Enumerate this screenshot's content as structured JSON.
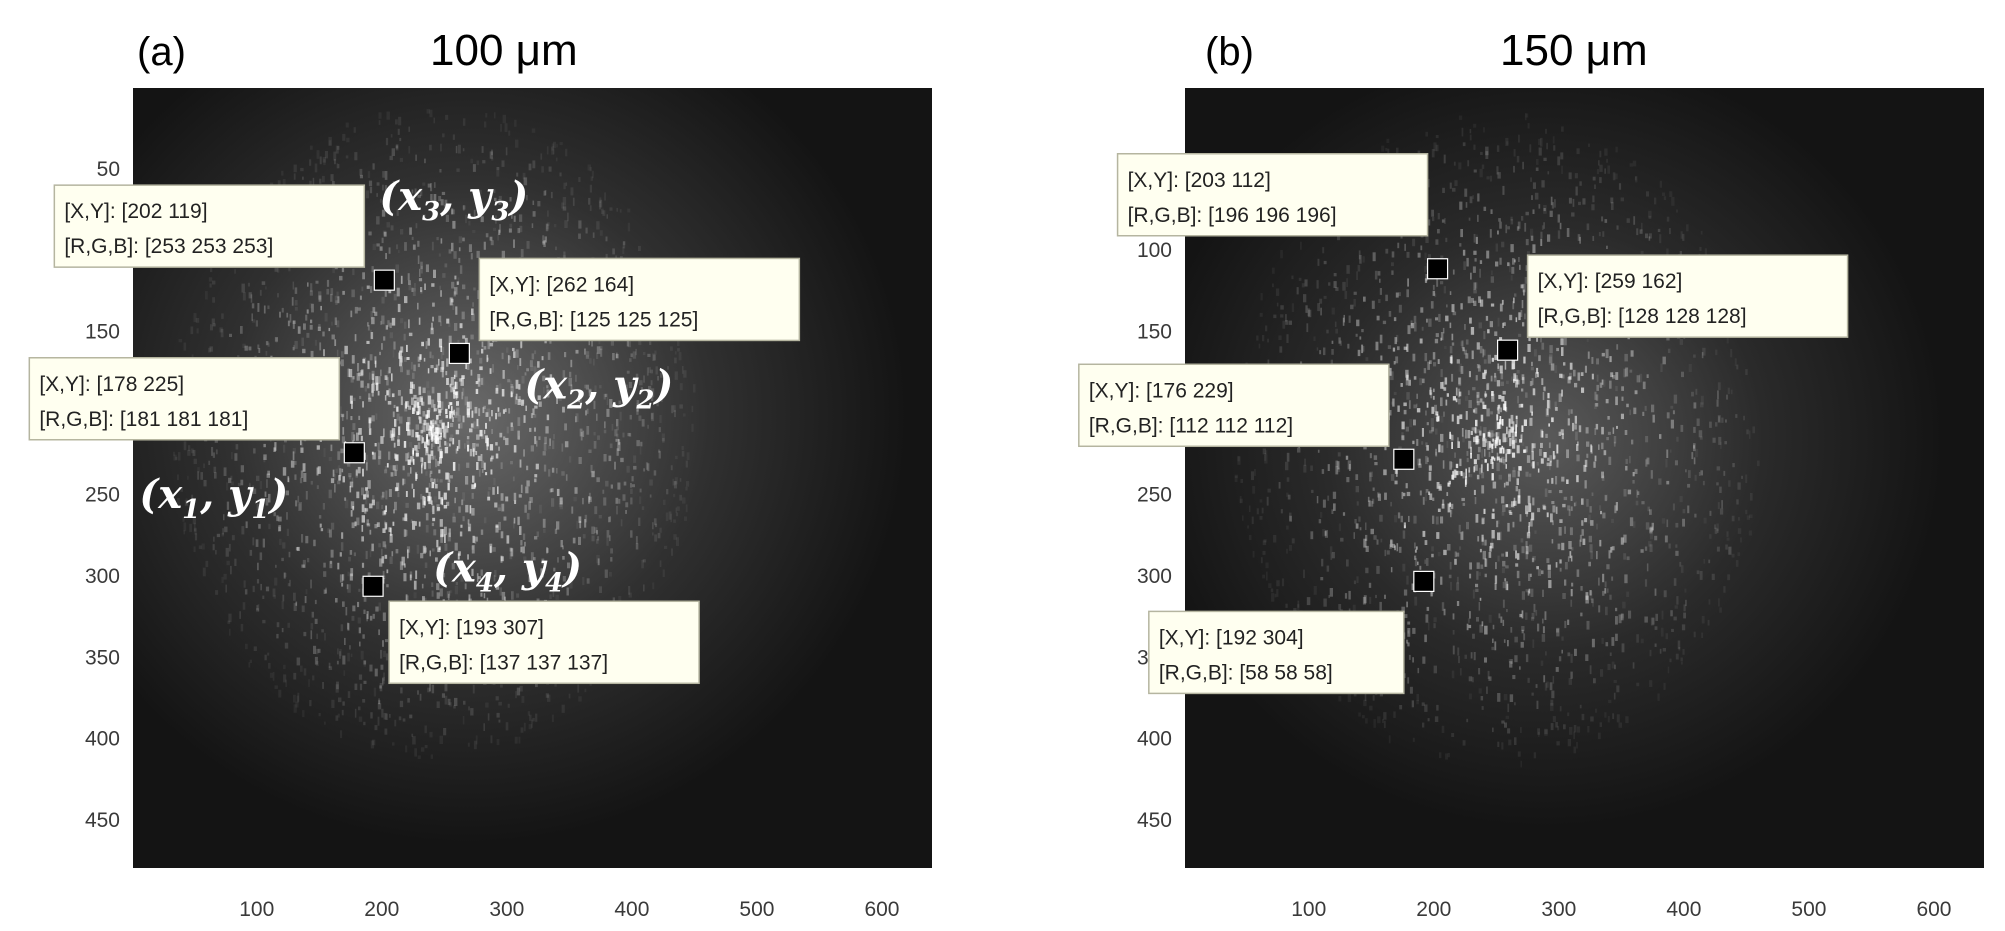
{
  "chart_data": [
    {
      "type": "scatter",
      "panel_label": "(a)",
      "title": "100 μm",
      "xlim": [
        1,
        640
      ],
      "ylim": [
        1,
        480
      ],
      "y_reversed": true,
      "xticks": [
        100,
        200,
        300,
        400,
        500,
        600
      ],
      "yticks": [
        50,
        100,
        150,
        200,
        250,
        300,
        350,
        400,
        450
      ],
      "background": "dark speckle image (grayscale)",
      "points": [
        {
          "x": 202,
          "y": 119,
          "rgb": [
            253,
            253,
            253
          ],
          "tip_xy": "[X,Y]: [202 119]",
          "tip_rgb": "[R,G,B]: [253 253 253]",
          "label_base_x": "x",
          "label_base_y": "y",
          "label_sub": "3"
        },
        {
          "x": 262,
          "y": 164,
          "rgb": [
            125,
            125,
            125
          ],
          "tip_xy": "[X,Y]: [262 164]",
          "tip_rgb": "[R,G,B]: [125 125 125]",
          "label_base_x": "x",
          "label_base_y": "y",
          "label_sub": "2"
        },
        {
          "x": 178,
          "y": 225,
          "rgb": [
            181,
            181,
            181
          ],
          "tip_xy": "[X,Y]: [178 225]",
          "tip_rgb": "[R,G,B]: [181 181 181]",
          "label_base_x": "x",
          "label_base_y": "y",
          "label_sub": "1"
        },
        {
          "x": 193,
          "y": 307,
          "rgb": [
            137,
            137,
            137
          ],
          "tip_xy": "[X,Y]: [193 307]",
          "tip_rgb": "[R,G,B]: [137 137 137]",
          "label_base_x": "x",
          "label_base_y": "y",
          "label_sub": "4"
        }
      ]
    },
    {
      "type": "scatter",
      "panel_label": "(b)",
      "title": "150 μm",
      "xlim": [
        1,
        640
      ],
      "ylim": [
        1,
        480
      ],
      "y_reversed": true,
      "xticks": [
        100,
        200,
        300,
        400,
        500,
        600
      ],
      "yticks": [
        100,
        150,
        250,
        300,
        350,
        400,
        450
      ],
      "background": "dark speckle image (grayscale)",
      "points": [
        {
          "x": 203,
          "y": 112,
          "rgb": [
            196,
            196,
            196
          ],
          "tip_xy": "[X,Y]: [203 112]",
          "tip_rgb": "[R,G,B]: [196 196 196]"
        },
        {
          "x": 259,
          "y": 162,
          "rgb": [
            128,
            128,
            128
          ],
          "tip_xy": "[X,Y]: [259 162]",
          "tip_rgb": "[R,G,B]: [128 128 128]"
        },
        {
          "x": 176,
          "y": 229,
          "rgb": [
            112,
            112,
            112
          ],
          "tip_xy": "[X,Y]: [176 229]",
          "tip_rgb": "[R,G,B]: [112 112 112]"
        },
        {
          "x": 192,
          "y": 304,
          "rgb": [
            58,
            58,
            58
          ],
          "tip_xy": "[X,Y]: [192 304]",
          "tip_rgb": "[R,G,B]: [58 58 58]"
        }
      ]
    }
  ],
  "colors": {
    "image_background": "#141414",
    "speckle": "#ffffff",
    "tooltip_fill": "#fffff0",
    "tooltip_border": "#b5b5a0",
    "marker": "#000000"
  }
}
